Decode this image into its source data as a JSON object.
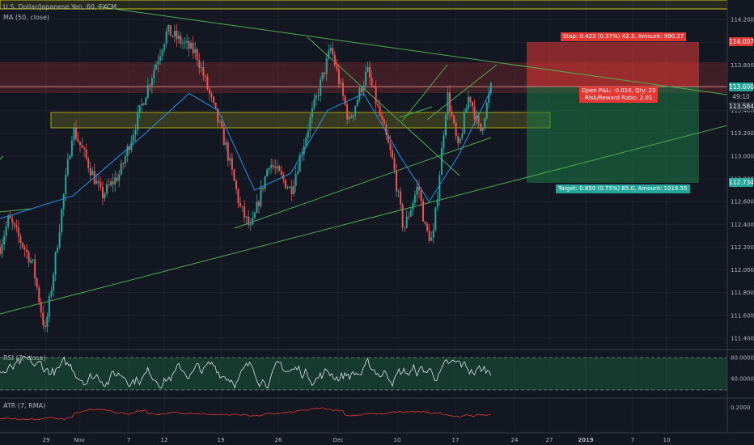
{
  "legend": {
    "symbol": "U.S. Dollar/Japanese Yen, 60, FXCM",
    "ma": "MA (50, close)",
    "rsi": "RSI (7, close)",
    "atr": "ATR (7, RMA)"
  },
  "price_tags": {
    "stop": "114.007",
    "current": "113.600",
    "countdown": "49:10",
    "ma": "113.584",
    "target": "112.734"
  },
  "position": {
    "stop_label": "Stop: 0.423 (0.37%) 42.3, Amount: 990.27",
    "open_label": "Open P&L: -0.016, Qty: 23",
    "ratio_label": "Risk/Reward Ratio: 2.01",
    "target_label": "Target: 0.850 (0.75%) 85.0, Amount: 1019.55",
    "entry": 113.584,
    "stop": 114.007,
    "target": 112.734
  },
  "colors": {
    "up": "#26a69a",
    "down": "#ef5350",
    "trendline": "#4caf50",
    "ma": "#2196f3",
    "rsi": "#e0e3eb",
    "atr": "#e53935",
    "stop_zone": "#e53935",
    "target_zone": "#26a69a",
    "zone_yellow": "#c8c41a"
  },
  "chart_data": {
    "type": "candlestick",
    "price_axis": {
      "min": 111.3,
      "max": 114.3,
      "ticks": [
        "114.200",
        "114.000",
        "113.800",
        "113.600",
        "113.400",
        "113.200",
        "113.000",
        "112.800",
        "112.600",
        "112.400",
        "112.200",
        "112.000",
        "111.800",
        "111.600",
        "111.400"
      ]
    },
    "rsi_axis": {
      "ticks": [
        "80.0000",
        "40.0000"
      ],
      "range": [
        0,
        100
      ],
      "band": [
        30,
        80
      ]
    },
    "atr_axis": {
      "ticks": [
        "0.2000"
      ]
    },
    "time_axis": {
      "ticks": [
        "29",
        "Nov",
        "7",
        "12",
        "19",
        "26",
        "Dec",
        "10",
        "17",
        "24",
        "27",
        "2019",
        "7",
        "10"
      ]
    },
    "price_path": [
      [
        0,
        112.2
      ],
      [
        0.012,
        112.45
      ],
      [
        0.045,
        112.05
      ],
      [
        0.062,
        111.45
      ],
      [
        0.075,
        112.05
      ],
      [
        0.1,
        113.25
      ],
      [
        0.14,
        112.65
      ],
      [
        0.165,
        112.85
      ],
      [
        0.2,
        113.55
      ],
      [
        0.23,
        114.1
      ],
      [
        0.27,
        113.9
      ],
      [
        0.31,
        113.1
      ],
      [
        0.33,
        112.55
      ],
      [
        0.345,
        112.35
      ],
      [
        0.37,
        112.95
      ],
      [
        0.4,
        112.7
      ],
      [
        0.43,
        113.4
      ],
      [
        0.455,
        113.95
      ],
      [
        0.48,
        113.3
      ],
      [
        0.505,
        113.75
      ],
      [
        0.54,
        112.95
      ],
      [
        0.555,
        112.35
      ],
      [
        0.575,
        112.75
      ],
      [
        0.585,
        112.35
      ],
      [
        0.595,
        112.25
      ],
      [
        0.615,
        113.55
      ],
      [
        0.63,
        113.05
      ],
      [
        0.645,
        113.55
      ],
      [
        0.66,
        113.2
      ],
      [
        0.675,
        113.6
      ]
    ],
    "ma_path": [
      [
        0,
        112.45
      ],
      [
        0.1,
        112.65
      ],
      [
        0.2,
        113.2
      ],
      [
        0.26,
        113.55
      ],
      [
        0.3,
        113.4
      ],
      [
        0.35,
        112.7
      ],
      [
        0.4,
        112.85
      ],
      [
        0.45,
        113.4
      ],
      [
        0.5,
        113.55
      ],
      [
        0.55,
        113.0
      ],
      [
        0.59,
        112.6
      ],
      [
        0.63,
        113.0
      ],
      [
        0.675,
        113.58
      ]
    ]
  }
}
